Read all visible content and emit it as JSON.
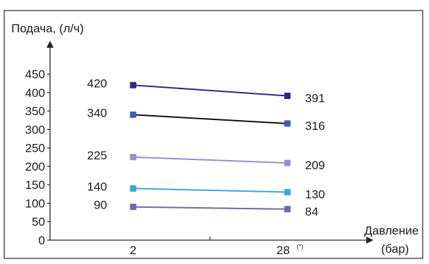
{
  "chart_data": {
    "type": "line",
    "ylabel": "Подача, (л/ч)",
    "xlabel_line1": "Давление",
    "xlabel_line2": "(бар)",
    "x_categories": [
      "2",
      "28"
    ],
    "x_category_suffix": [
      "",
      "(*)"
    ],
    "y_ticks": [
      "0",
      "50",
      "100",
      "150",
      "200",
      "250",
      "300",
      "350",
      "400",
      "450"
    ],
    "ylim": [
      0,
      470
    ],
    "grid": false,
    "series": [
      {
        "values": [
          420,
          391
        ],
        "labels": [
          "420",
          "391"
        ],
        "color": "#2e2a7a"
      },
      {
        "values": [
          340,
          316
        ],
        "labels": [
          "340",
          "316"
        ],
        "color": "#3a5fb8"
      },
      {
        "values": [
          225,
          209
        ],
        "labels": [
          "225",
          "209"
        ],
        "color": "#9b8ecb"
      },
      {
        "values": [
          140,
          130
        ],
        "labels": [
          "140",
          "130"
        ],
        "color": "#3aa6dc"
      },
      {
        "values": [
          90,
          84
        ],
        "labels": [
          "90",
          "84"
        ],
        "color": "#6b6aa8"
      }
    ],
    "line_colors": [
      "#2e2a7a",
      "#111111",
      "#9b8ecb",
      "#3aa6dc",
      "#6b6aa8"
    ]
  }
}
